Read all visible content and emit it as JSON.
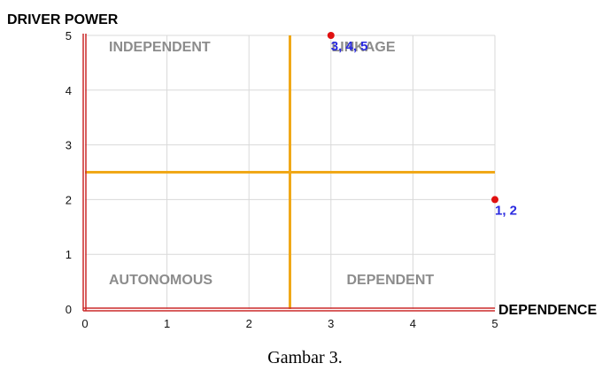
{
  "chart_data": {
    "type": "scatter",
    "xlabel": "DEPENDENCE",
    "ylabel": "DRIVER POWER",
    "xlim": [
      0,
      5
    ],
    "ylim": [
      0,
      5
    ],
    "xticks": [
      0,
      1,
      2,
      3,
      4,
      5
    ],
    "yticks": [
      0,
      1,
      2,
      3,
      4,
      5
    ],
    "grid": true,
    "divider": {
      "x": 2.5,
      "y": 2.5
    },
    "quadrants": [
      {
        "label": "INDEPENDENT",
        "position": "top-left"
      },
      {
        "label": "LINKAGE",
        "position": "top-right"
      },
      {
        "label": "AUTONOMOUS",
        "position": "bottom-left"
      },
      {
        "label": "DEPENDENT",
        "position": "bottom-right"
      }
    ],
    "points": [
      {
        "x": 3,
        "y": 5,
        "label": "3, 4, 5"
      },
      {
        "x": 5,
        "y": 2,
        "label": "1, 2"
      }
    ],
    "colors": {
      "axis": "#cc2a2a",
      "divider": "#f0a818",
      "grid": "#d9d9d9",
      "point": "#e01010",
      "point_label": "#2a2ae0",
      "quadrant_label": "#8c8c8c"
    }
  },
  "caption": "Gambar 3."
}
